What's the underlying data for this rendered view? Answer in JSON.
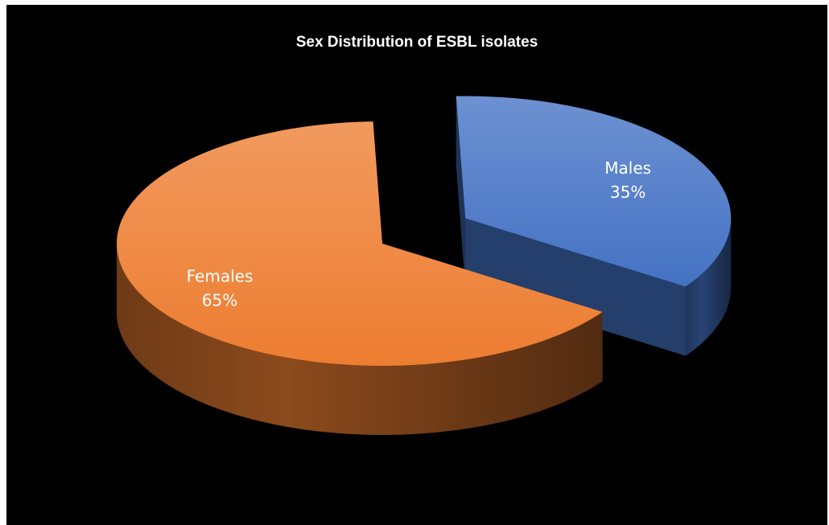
{
  "chart_data": {
    "type": "pie",
    "style": "3d-exploded",
    "title": "Sex Distribution of ESBL isolates",
    "legend": "none",
    "slices": [
      {
        "label": "Males",
        "value": 35,
        "value_label": "35%",
        "color": "#4472C4",
        "exploded": true
      },
      {
        "label": "Females",
        "value": 65,
        "value_label": "65%",
        "color": "#ED7D31",
        "exploded": false
      }
    ],
    "background": "#000000"
  }
}
